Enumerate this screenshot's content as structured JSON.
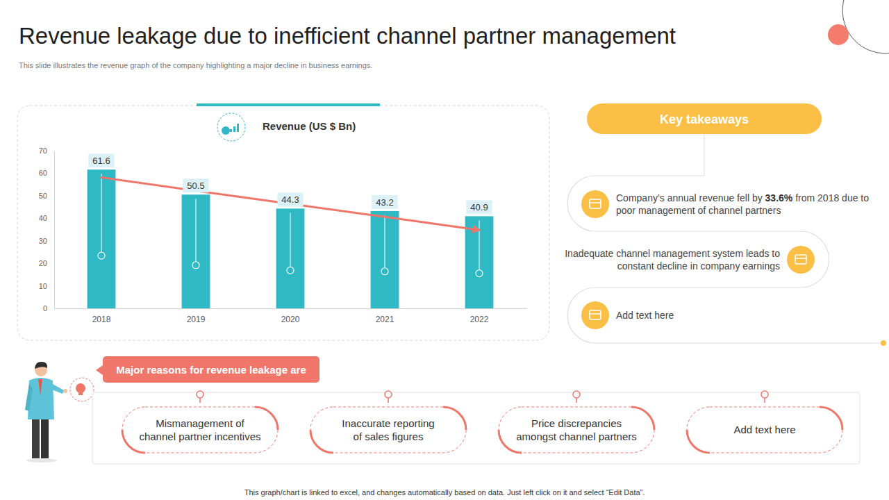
{
  "title": "Revenue leakage due to inefficient channel partner management",
  "subtitle": "This slide illustrates the revenue graph of the company highlighting a major decline in business earnings.",
  "chart_data": {
    "type": "bar",
    "title": "Revenue (US $ Bn)",
    "categories": [
      "2018",
      "2019",
      "2020",
      "2021",
      "2022"
    ],
    "series": [
      {
        "type": "bar",
        "color": "#2fb9c5",
        "values": [
          61.6,
          50.5,
          44.3,
          43.2,
          40.9
        ]
      },
      {
        "type": "line",
        "color": "#f0766a",
        "values": [
          58.1,
          52.2,
          46.4,
          40.6,
          34.8
        ]
      }
    ],
    "ylim": [
      0,
      70
    ],
    "yticks": [
      0,
      10,
      20,
      30,
      40,
      50,
      60,
      70
    ],
    "data_labels": true,
    "grid": false
  },
  "key_takeaways": {
    "heading": "Key takeaways",
    "items": [
      {
        "text": "Company’s annual revenue fell by 33.6% from 2018 due to poor management of channel partners",
        "emphasis": "33.6%"
      },
      {
        "text": "Inadequate channel management system leads to constant decline in company earnings"
      },
      {
        "text": "Add text here"
      }
    ]
  },
  "reasons": {
    "heading": "Major reasons for revenue leakage are",
    "items": [
      "Mismanagement of channel partner incentives",
      "Inaccurate reporting of sales figures",
      "Price discrepancies amongst channel partners",
      "Add text here"
    ]
  },
  "footnote": "This graph/chart is linked to excel, and changes automatically based on data. Just left click on it and select “Edit Data”."
}
